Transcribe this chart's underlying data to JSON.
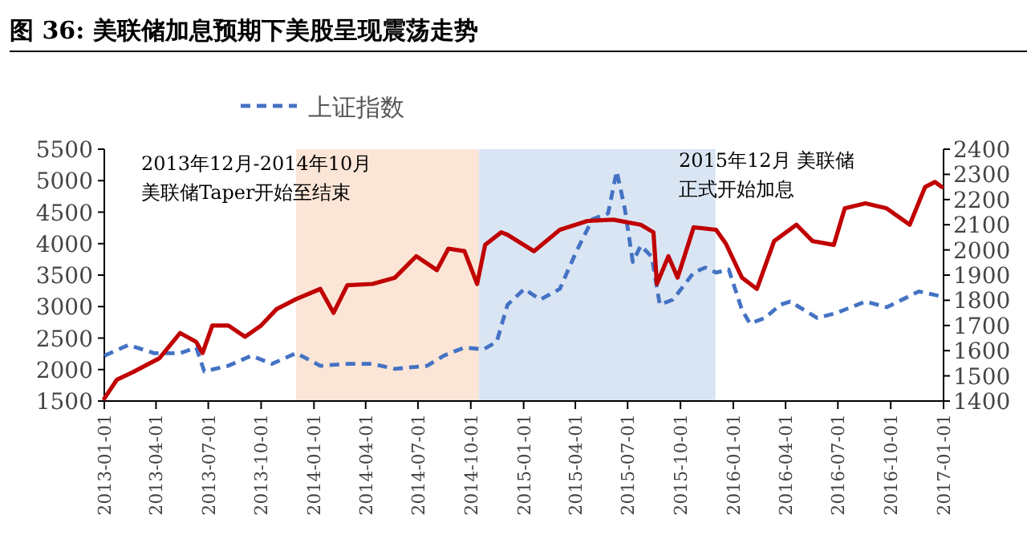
{
  "chart_data": {
    "type": "line",
    "title": "图 36:  美联储加息预期下美股呈现震荡走势",
    "annotations": [
      "2013年12月-2014年10月",
      "美联储Taper开始至结束",
      "2015年12月  美联储",
      "正式开始加息"
    ],
    "xlim": [
      "2013-01-01",
      "2017-01-01"
    ],
    "xticks": [
      "2013-01-01",
      "2013-04-01",
      "2013-07-01",
      "2013-10-01",
      "2014-01-01",
      "2014-04-01",
      "2014-07-01",
      "2014-10-01",
      "2015-01-01",
      "2015-04-01",
      "2015-07-01",
      "2015-10-01",
      "2016-01-01",
      "2016-04-01",
      "2016-07-01",
      "2016-10-01",
      "2017-01-01"
    ],
    "ylim": [
      1500,
      5500
    ],
    "yticks": [
      1500,
      2000,
      2500,
      3000,
      3500,
      4000,
      4500,
      5000,
      5500
    ],
    "y2lim": [
      1400,
      2400
    ],
    "y2ticks": [
      1400,
      1500,
      1600,
      1700,
      1800,
      1900,
      2000,
      2100,
      2200,
      2300,
      2400
    ],
    "legend": "top",
    "grid": false,
    "marker": "none",
    "bands": [
      {
        "axis": "x",
        "from": "2013-12-01",
        "to": "2014-10-15",
        "color": "#fbe5d6"
      },
      {
        "axis": "x",
        "from": "2014-10-15",
        "to": "2015-12-01",
        "color": "#dae5f3"
      }
    ],
    "series": [
      {
        "name": "上证指数",
        "color": "#4472c4",
        "line_style": "dashed",
        "x": [
          "2013-01-01",
          "2013-02-12",
          "2013-03-29",
          "2013-05-13",
          "2013-06-10",
          "2013-06-24",
          "2013-08-05",
          "2013-09-14",
          "2013-10-20",
          "2013-12-01",
          "2014-01-12",
          "2014-02-28",
          "2014-04-13",
          "2014-05-22",
          "2014-07-17",
          "2014-08-15",
          "2014-09-20",
          "2014-10-23",
          "2014-11-15",
          "2014-12-04",
          "2015-01-02",
          "2015-01-30",
          "2015-03-05",
          "2015-04-03",
          "2015-05-01",
          "2015-05-28",
          "2015-06-12",
          "2015-06-26",
          "2015-07-10",
          "2015-07-24",
          "2015-08-12",
          "2015-08-26",
          "2015-09-18",
          "2015-10-24",
          "2015-11-13",
          "2015-12-02",
          "2015-12-24",
          "2016-01-16",
          "2016-01-30",
          "2016-02-25",
          "2016-03-23",
          "2016-04-09",
          "2016-05-26",
          "2016-06-29",
          "2016-08-18",
          "2016-09-24",
          "2016-11-19",
          "2016-12-29"
        ],
        "values": [
          2220,
          2390,
          2260,
          2260,
          2350,
          1970,
          2060,
          2220,
          2090,
          2260,
          2060,
          2090,
          2090,
          2010,
          2060,
          2220,
          2350,
          2320,
          2440,
          3030,
          3280,
          3110,
          3280,
          3880,
          4390,
          4480,
          5150,
          4560,
          3710,
          3970,
          3790,
          3030,
          3110,
          3540,
          3620,
          3540,
          3590,
          2950,
          2730,
          2820,
          3030,
          3080,
          2820,
          2900,
          3080,
          2990,
          3240,
          3160
        ]
      },
      {
        "color": "#c00000",
        "line_style": "solid",
        "axis": "y2",
        "x": [
          "2013-01-01",
          "2013-01-23",
          "2013-02-20",
          "2013-04-07",
          "2013-05-13",
          "2013-06-10",
          "2013-06-21",
          "2013-07-08",
          "2013-08-05",
          "2013-09-03",
          "2013-10-01",
          "2013-10-28",
          "2013-12-01",
          "2014-01-12",
          "2014-02-04",
          "2014-02-28",
          "2014-04-13",
          "2014-05-22",
          "2014-06-28",
          "2014-08-03",
          "2014-08-23",
          "2014-09-20",
          "2014-10-12",
          "2014-10-26",
          "2014-11-23",
          "2014-12-04",
          "2015-01-19",
          "2015-03-05",
          "2015-04-22",
          "2015-06-06",
          "2015-07-24",
          "2015-08-15",
          "2015-08-21",
          "2015-09-10",
          "2015-09-26",
          "2015-10-24",
          "2015-12-02",
          "2015-12-19",
          "2016-01-16",
          "2016-02-11",
          "2016-03-12",
          "2016-04-20",
          "2016-05-18",
          "2016-06-24",
          "2016-07-13",
          "2016-08-18",
          "2016-09-24",
          "2016-11-03",
          "2016-11-30",
          "2016-12-17",
          "2016-12-29"
        ],
        "values": [
          1410,
          1485,
          1515,
          1570,
          1670,
          1635,
          1590,
          1700,
          1700,
          1655,
          1700,
          1765,
          1805,
          1845,
          1750,
          1860,
          1865,
          1890,
          1975,
          1920,
          2005,
          1995,
          1865,
          2020,
          2070,
          2060,
          1995,
          2080,
          2115,
          2120,
          2100,
          2070,
          1865,
          1975,
          1890,
          2090,
          2080,
          2025,
          1890,
          1845,
          2035,
          2100,
          2035,
          2020,
          2165,
          2185,
          2165,
          2100,
          2250,
          2270,
          2250
        ]
      }
    ]
  }
}
